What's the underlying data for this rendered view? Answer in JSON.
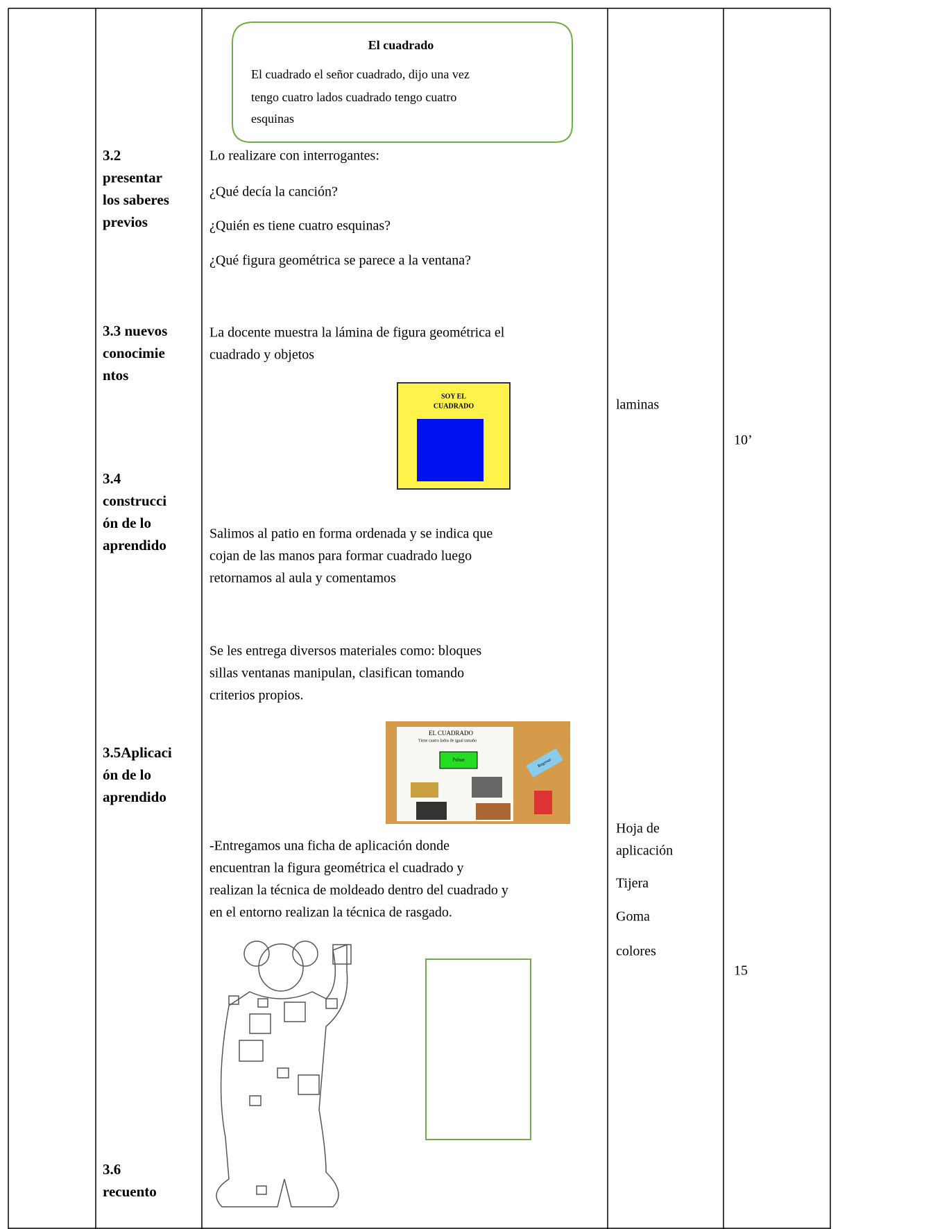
{
  "song": {
    "title": "El cuadrado",
    "lines": [
      "El cuadrado el señor cuadrado, dijo una vez",
      "tengo cuatro lados cuadrado tengo cuatro",
      "esquinas"
    ]
  },
  "stages": [
    [
      "3.2",
      "presentar",
      "los saberes",
      "previos"
    ],
    [
      "3.3 nuevos",
      "conocimie",
      "ntos"
    ],
    [
      "3.4",
      "construcci",
      "ón de lo",
      "aprendido"
    ],
    [
      "3.5Aplicaci",
      "ón de lo",
      "aprendido"
    ],
    [
      "3.6",
      "recuento"
    ]
  ],
  "activities": [
    [
      "Lo realizare con interrogantes:"
    ],
    [
      "¿Qué decía la canción?"
    ],
    [
      "¿Quién es tiene cuatro esquinas?"
    ],
    [
      "¿Qué figura geométrica se parece a la ventana?"
    ],
    [
      "La docente muestra la lámina de figura geométrica el",
      "cuadrado y objetos"
    ],
    [
      "Salimos al patio en forma ordenada y se indica que",
      "cojan de las manos para formar cuadrado luego",
      "retornamos al aula y comentamos"
    ],
    [
      "Se les entrega diversos materiales como: bloques",
      "sillas ventanas manipulan, clasifican tomando",
      "criterios propios."
    ],
    [
      "-Entregamos una ficha de aplicación donde",
      "encuentran la figura geométrica el cuadrado y",
      "realizan la técnica de moldeado dentro del cuadrado y",
      "en el entorno realizan la técnica de rasgado."
    ]
  ],
  "lamina": [
    "SOY EL",
    "CUADRADO"
  ],
  "screen": {
    "title": "EL CUADRADO",
    "subtitle": "Tiene cuatro lados de igual tamaño",
    "button": "Pulsar",
    "back": "Regresar"
  },
  "resources": [
    "laminas",
    "Hoja de",
    "aplicación",
    "Tijera",
    "Goma",
    "colores"
  ],
  "times": [
    "10’",
    "15"
  ]
}
